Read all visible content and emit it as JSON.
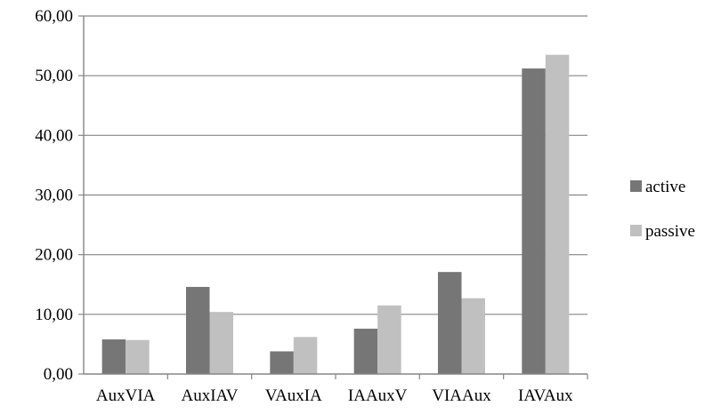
{
  "chart_data": {
    "type": "bar",
    "categories": [
      "AuxVIA",
      "AuxIAV",
      "VAuxIA",
      "IAAuxV",
      "VIAAux",
      "IAVAux"
    ],
    "series": [
      {
        "name": "active",
        "values": [
          5.8,
          14.6,
          3.8,
          7.6,
          17.1,
          51.2
        ],
        "color": "#767676"
      },
      {
        "name": "passive",
        "values": [
          5.7,
          10.4,
          6.2,
          11.5,
          12.7,
          53.5
        ],
        "color": "#c0c0c0"
      }
    ],
    "title": "",
    "xlabel": "",
    "ylabel": "",
    "ylim": [
      0,
      60
    ],
    "yticks": [
      "0,00",
      "10,00",
      "20,00",
      "30,00",
      "40,00",
      "50,00",
      "60,00"
    ],
    "grid": true,
    "legend_position": "right"
  }
}
